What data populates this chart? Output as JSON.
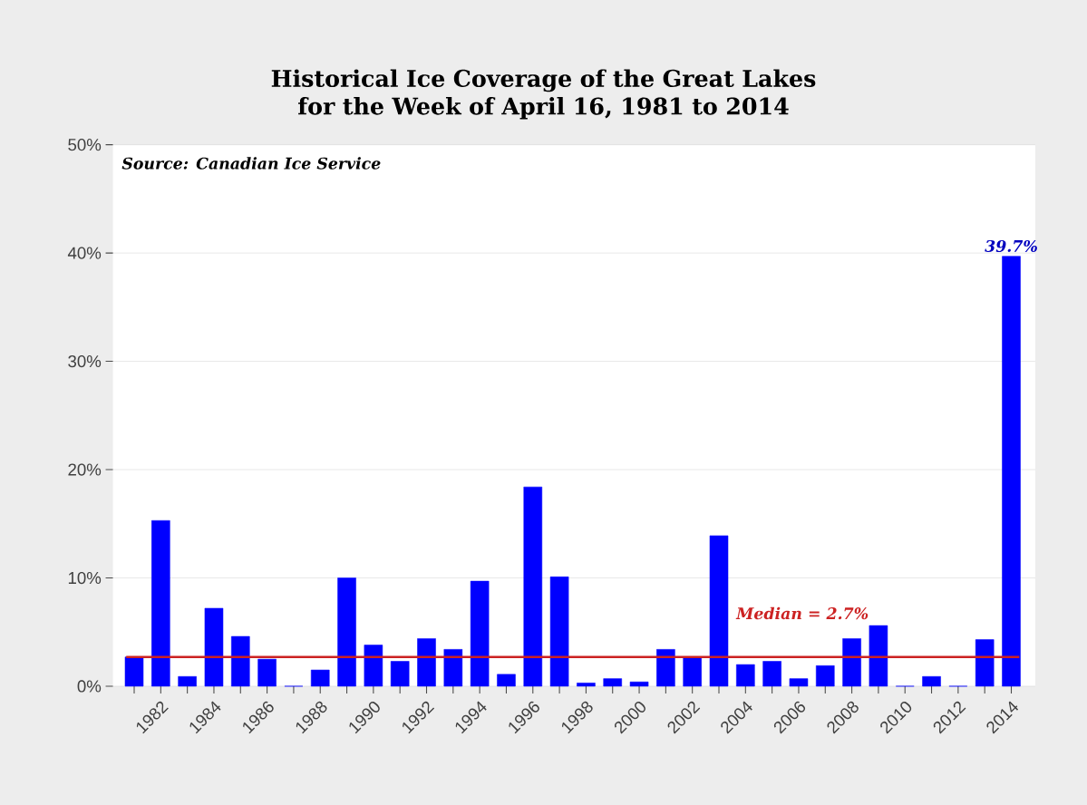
{
  "chart_data": {
    "type": "bar",
    "title": "Historical Ice Coverage of the Great Lakes for the Week of April 16, 1981 to 2014",
    "categories": [
      null,
      "1982",
      null,
      "1984",
      null,
      "1986",
      null,
      "1988",
      null,
      "1990",
      null,
      "1992",
      null,
      "1994",
      null,
      "1996",
      null,
      "1998",
      null,
      "2000",
      null,
      "2002",
      null,
      "2004",
      null,
      "2006",
      null,
      "2008",
      null,
      "2010",
      null,
      "2012",
      null,
      "2014"
    ],
    "values": [
      2.7,
      15.3,
      0.9,
      7.2,
      4.6,
      2.5,
      0,
      1.5,
      10.0,
      3.8,
      2.3,
      4.4,
      3.4,
      9.7,
      1.1,
      18.4,
      10.1,
      0.3,
      0.7,
      0.4,
      3.4,
      2.7,
      13.9,
      2.0,
      2.3,
      0.7,
      1.9,
      4.4,
      5.6,
      0,
      0.9,
      0,
      4.3,
      39.7
    ],
    "value_labels": [
      null,
      null,
      null,
      null,
      null,
      null,
      null,
      null,
      null,
      null,
      null,
      null,
      null,
      null,
      null,
      null,
      null,
      null,
      null,
      null,
      null,
      null,
      null,
      null,
      null,
      null,
      null,
      null,
      null,
      null,
      null,
      null,
      null,
      "39.7%"
    ],
    "color": "#0000ff",
    "ylim": [
      0,
      50
    ],
    "yticks": [
      {
        "value": 0,
        "label": "0%"
      },
      {
        "value": 10,
        "label": "10%"
      },
      {
        "value": 20,
        "label": "20%"
      },
      {
        "value": 30,
        "label": "30%"
      },
      {
        "value": 40,
        "label": "40%"
      },
      {
        "value": 50,
        "label": "50%"
      }
    ],
    "grid": "y",
    "ref_lines": [
      {
        "axis": "y",
        "value": 2.7,
        "label": "Median = 2.7%",
        "color": "#cc2222"
      }
    ],
    "annotations": [
      "Source: Canadian Ice Service"
    ]
  }
}
